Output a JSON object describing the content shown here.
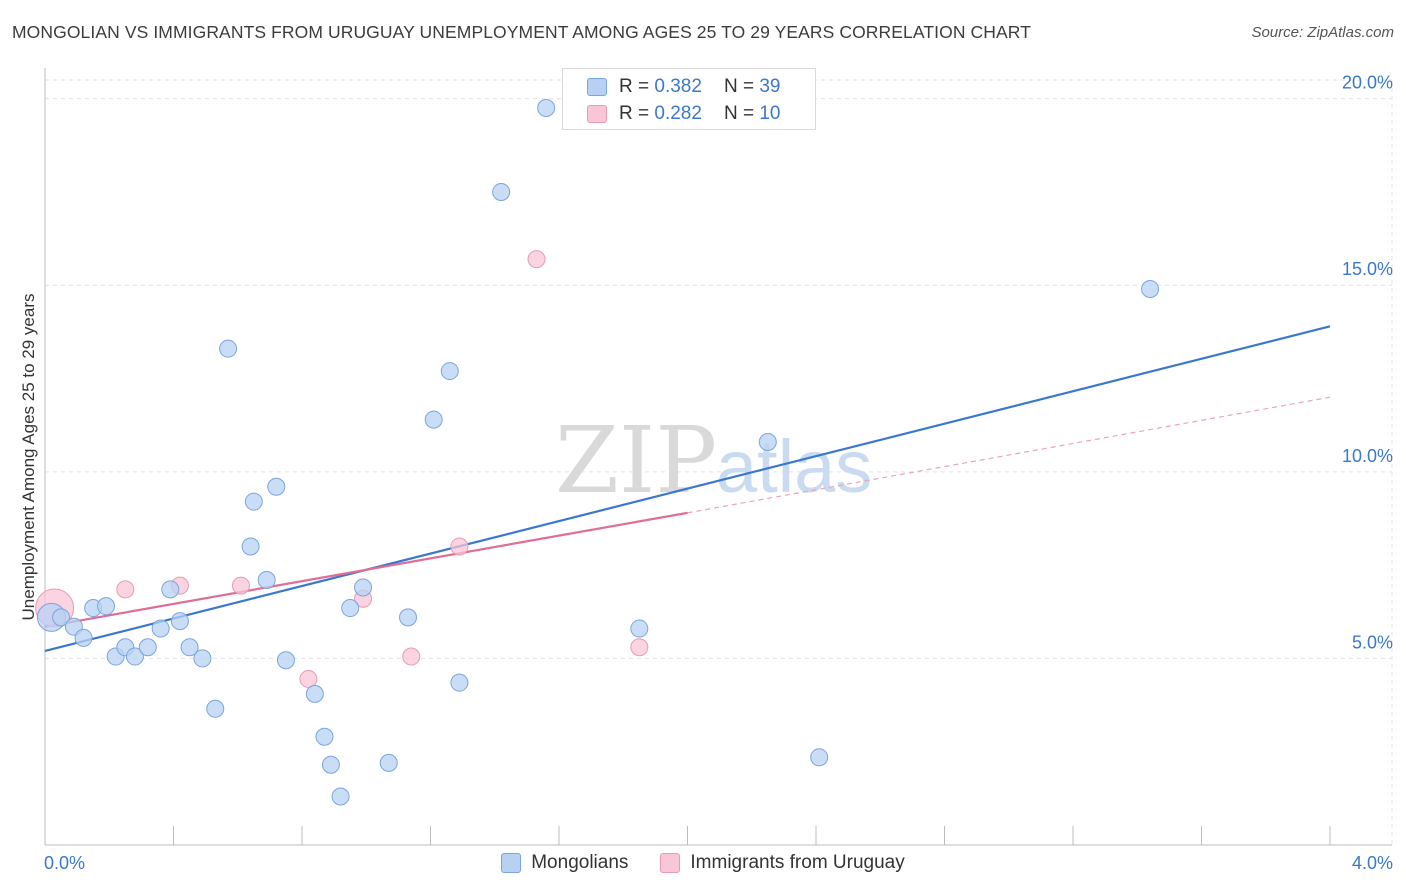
{
  "header": {
    "title": "MONGOLIAN VS IMMIGRANTS FROM URUGUAY UNEMPLOYMENT AMONG AGES 25 TO 29 YEARS CORRELATION CHART",
    "source": "Source: ZipAtlas.com"
  },
  "legend": {
    "rows": [
      {
        "r_label": "R =",
        "r_value": "0.382",
        "n_label": "N =",
        "n_value": "39"
      },
      {
        "r_label": "R =",
        "r_value": "0.282",
        "n_label": "N =",
        "n_value": "10"
      }
    ]
  },
  "bottom_legend": {
    "items": [
      {
        "label": "Mongolians"
      },
      {
        "label": "Immigrants from Uruguay"
      }
    ]
  },
  "watermark": {
    "zip": "ZIP",
    "atlas": "atlas"
  },
  "colors": {
    "blue_fill": "#b8d1f3",
    "blue_stroke": "#7aa5df",
    "blue_line": "#3a78cf",
    "pink_fill": "#f8c6d6",
    "pink_stroke": "#e99ab5",
    "pink_line": "#e06d95",
    "axis_label": "#3b78c9"
  },
  "chart_data": {
    "type": "scatter",
    "title": "MONGOLIAN VS IMMIGRANTS FROM URUGUAY UNEMPLOYMENT AMONG AGES 25 TO 29 YEARS CORRELATION CHART",
    "xlabel": "",
    "ylabel": "Unemployment Among Ages 25 to 29 years",
    "xlim": [
      0,
      4.0
    ],
    "ylim": [
      0,
      20.5
    ],
    "x_tick_labels": [
      "0.0%",
      "4.0%"
    ],
    "y_ticks": [
      5,
      10,
      15,
      20
    ],
    "y_tick_labels": [
      "5.0%",
      "10.0%",
      "15.0%",
      "20.0%"
    ],
    "grid": true,
    "series": [
      {
        "name": "Mongolians",
        "r": 0.382,
        "n": 39,
        "points": [
          {
            "x": 0.02,
            "y": 6.1
          },
          {
            "x": 0.05,
            "y": 6.1
          },
          {
            "x": 0.09,
            "y": 5.85
          },
          {
            "x": 0.12,
            "y": 5.55
          },
          {
            "x": 0.15,
            "y": 6.35
          },
          {
            "x": 0.19,
            "y": 6.4
          },
          {
            "x": 0.22,
            "y": 5.05
          },
          {
            "x": 0.25,
            "y": 5.3
          },
          {
            "x": 0.28,
            "y": 5.05
          },
          {
            "x": 0.32,
            "y": 5.3
          },
          {
            "x": 0.36,
            "y": 5.8
          },
          {
            "x": 0.39,
            "y": 6.85
          },
          {
            "x": 0.42,
            "y": 6.0
          },
          {
            "x": 0.45,
            "y": 5.3
          },
          {
            "x": 0.49,
            "y": 5.0
          },
          {
            "x": 0.53,
            "y": 3.65
          },
          {
            "x": 0.57,
            "y": 13.3
          },
          {
            "x": 0.64,
            "y": 8.0
          },
          {
            "x": 0.65,
            "y": 9.2
          },
          {
            "x": 0.69,
            "y": 7.1
          },
          {
            "x": 0.72,
            "y": 9.6
          },
          {
            "x": 0.75,
            "y": 4.95
          },
          {
            "x": 0.84,
            "y": 4.05
          },
          {
            "x": 0.87,
            "y": 2.9
          },
          {
            "x": 0.89,
            "y": 2.15
          },
          {
            "x": 0.92,
            "y": 1.3
          },
          {
            "x": 0.95,
            "y": 6.35
          },
          {
            "x": 0.99,
            "y": 6.9
          },
          {
            "x": 1.07,
            "y": 2.2
          },
          {
            "x": 1.13,
            "y": 6.1
          },
          {
            "x": 1.21,
            "y": 11.4
          },
          {
            "x": 1.26,
            "y": 12.7
          },
          {
            "x": 1.29,
            "y": 4.35
          },
          {
            "x": 1.42,
            "y": 17.5
          },
          {
            "x": 1.56,
            "y": 19.75
          },
          {
            "x": 1.85,
            "y": 5.8
          },
          {
            "x": 2.25,
            "y": 10.8
          },
          {
            "x": 2.41,
            "y": 2.35
          },
          {
            "x": 3.44,
            "y": 14.9
          }
        ],
        "trend": {
          "x": [
            0.0,
            4.0
          ],
          "y": [
            5.2,
            13.9
          ]
        }
      },
      {
        "name": "Immigrants from Uruguay",
        "r": 0.282,
        "n": 10,
        "points": [
          {
            "x": 0.03,
            "y": 6.35
          },
          {
            "x": 0.25,
            "y": 6.85
          },
          {
            "x": 0.42,
            "y": 6.95
          },
          {
            "x": 0.61,
            "y": 6.95
          },
          {
            "x": 0.82,
            "y": 4.45
          },
          {
            "x": 0.99,
            "y": 6.6
          },
          {
            "x": 1.14,
            "y": 5.05
          },
          {
            "x": 1.29,
            "y": 8.0
          },
          {
            "x": 1.53,
            "y": 15.7
          },
          {
            "x": 1.85,
            "y": 5.3
          }
        ],
        "trend": {
          "x": [
            0.0,
            2.0
          ],
          "y": [
            5.85,
            8.9
          ]
        },
        "trend_dashed": {
          "x": [
            2.0,
            4.0
          ],
          "y": [
            8.9,
            12.0
          ]
        }
      }
    ]
  }
}
